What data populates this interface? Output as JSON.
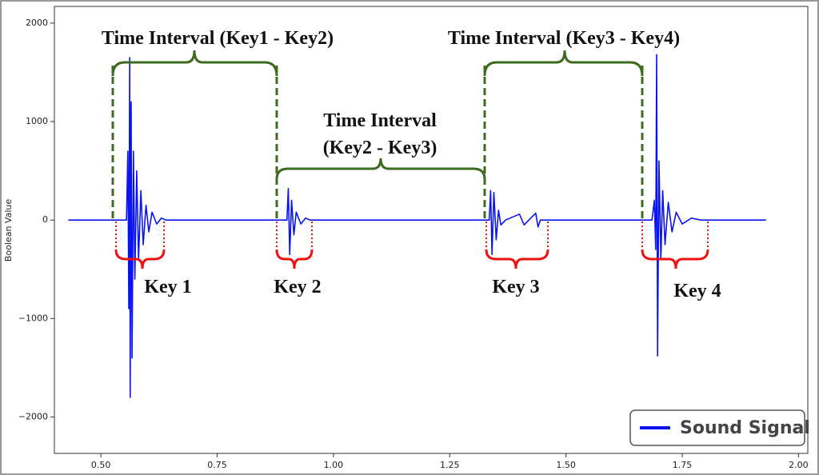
{
  "chart_data": {
    "type": "line",
    "y_label": "Boolean Value",
    "annotations": [
      "Time Interval (Key1 - Key2)",
      "Time Interval",
      "(Key2 - Key3)",
      "Time Interval (Key3 - Key4)",
      "Key 1",
      "Key 2",
      "Key 3",
      "Key 4"
    ],
    "xlim": [
      0.4,
      2.02
    ],
    "xticks": [
      {
        "value": 0.5,
        "label": "0.50"
      },
      {
        "value": 0.75,
        "label": "0.75"
      },
      {
        "value": 1.0,
        "label": "1.00"
      },
      {
        "value": 1.25,
        "label": "1.25"
      },
      {
        "value": 1.5,
        "label": "1.50"
      },
      {
        "value": 1.75,
        "label": "1.75"
      },
      {
        "value": 2.0,
        "label": "2.00"
      }
    ],
    "ylim": [
      -2370,
      2170
    ],
    "yticks": [
      {
        "value": -2000,
        "label": "−2000"
      },
      {
        "value": -1000,
        "label": "−1000"
      },
      0,
      1000,
      2000
    ],
    "legend": "lower right",
    "series": [
      {
        "name": "Sound Signal",
        "color": "#0a14f0",
        "x": [
          0.43,
          0.555,
          0.558,
          0.56,
          0.562,
          0.563,
          0.565,
          0.567,
          0.57,
          0.573,
          0.577,
          0.581,
          0.586,
          0.591,
          0.597,
          0.603,
          0.61,
          0.62,
          0.63,
          0.64,
          0.9,
          0.903,
          0.906,
          0.91,
          0.915,
          0.92,
          0.93,
          0.94,
          0.95,
          1.335,
          1.338,
          1.341,
          1.345,
          1.35,
          1.355,
          1.36,
          1.37,
          1.4,
          1.41,
          1.42,
          1.435,
          1.44,
          1.445,
          1.685,
          1.69,
          1.693,
          1.695,
          1.697,
          1.7,
          1.704,
          1.708,
          1.713,
          1.72,
          1.728,
          1.737,
          1.75,
          1.77,
          1.79,
          1.93
        ],
        "values": [
          0,
          0,
          700,
          -900,
          1650,
          -1800,
          1200,
          -1400,
          700,
          -600,
          500,
          -400,
          300,
          -250,
          150,
          -120,
          80,
          -40,
          20,
          0,
          0,
          320,
          -350,
          200,
          -150,
          80,
          -40,
          20,
          0,
          0,
          300,
          -350,
          280,
          -200,
          100,
          -50,
          0,
          60,
          -50,
          0,
          70,
          -70,
          0,
          0,
          200,
          -300,
          1680,
          -1380,
          600,
          -400,
          300,
          -250,
          180,
          -120,
          80,
          -40,
          20,
          0,
          0
        ]
      }
    ]
  }
}
